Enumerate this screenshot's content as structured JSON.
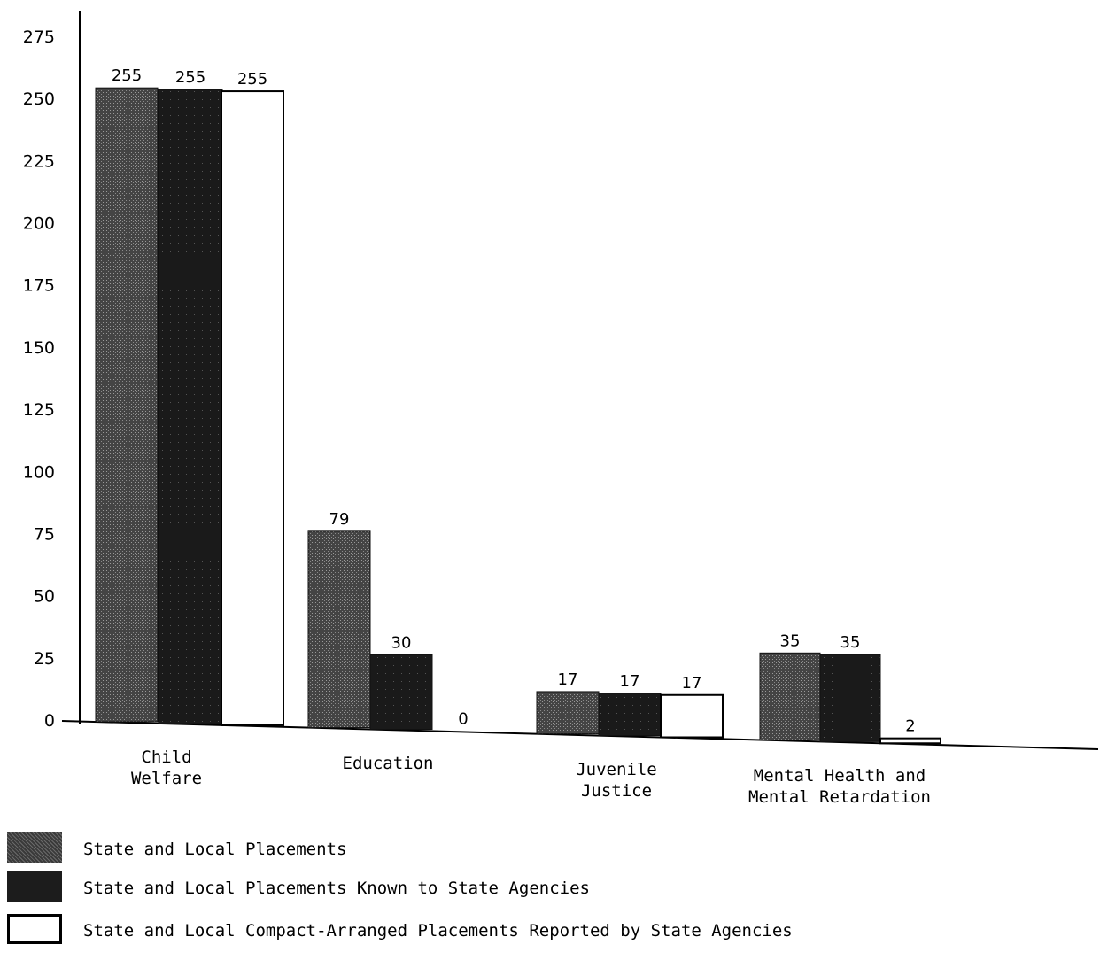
{
  "chart_data": {
    "type": "bar",
    "categories": [
      "Child\nWelfare",
      "Education",
      "Juvenile\nJustice",
      "Mental Health and\nMental Retardation"
    ],
    "series": [
      {
        "name": "State and Local Placements",
        "values": [
          255,
          79,
          17,
          35
        ],
        "color": "#3a3a3a",
        "pattern": "stipple-gray"
      },
      {
        "name": "State and Local Placements Known to State Agencies",
        "values": [
          255,
          30,
          17,
          35
        ],
        "color": "#1c1c1c",
        "pattern": "dark"
      },
      {
        "name": "State and Local Compact-Arranged Placements Reported by State Agencies",
        "values": [
          255,
          0,
          17,
          2
        ],
        "color": "#ffffff",
        "pattern": "outline"
      }
    ],
    "y_ticks": [
      0,
      25,
      50,
      75,
      100,
      125,
      150,
      175,
      200,
      225,
      250,
      275
    ],
    "ylim": [
      0,
      275
    ],
    "title": "",
    "xlabel": "",
    "ylabel": "",
    "grid": false,
    "legend_position": "bottom-left"
  }
}
